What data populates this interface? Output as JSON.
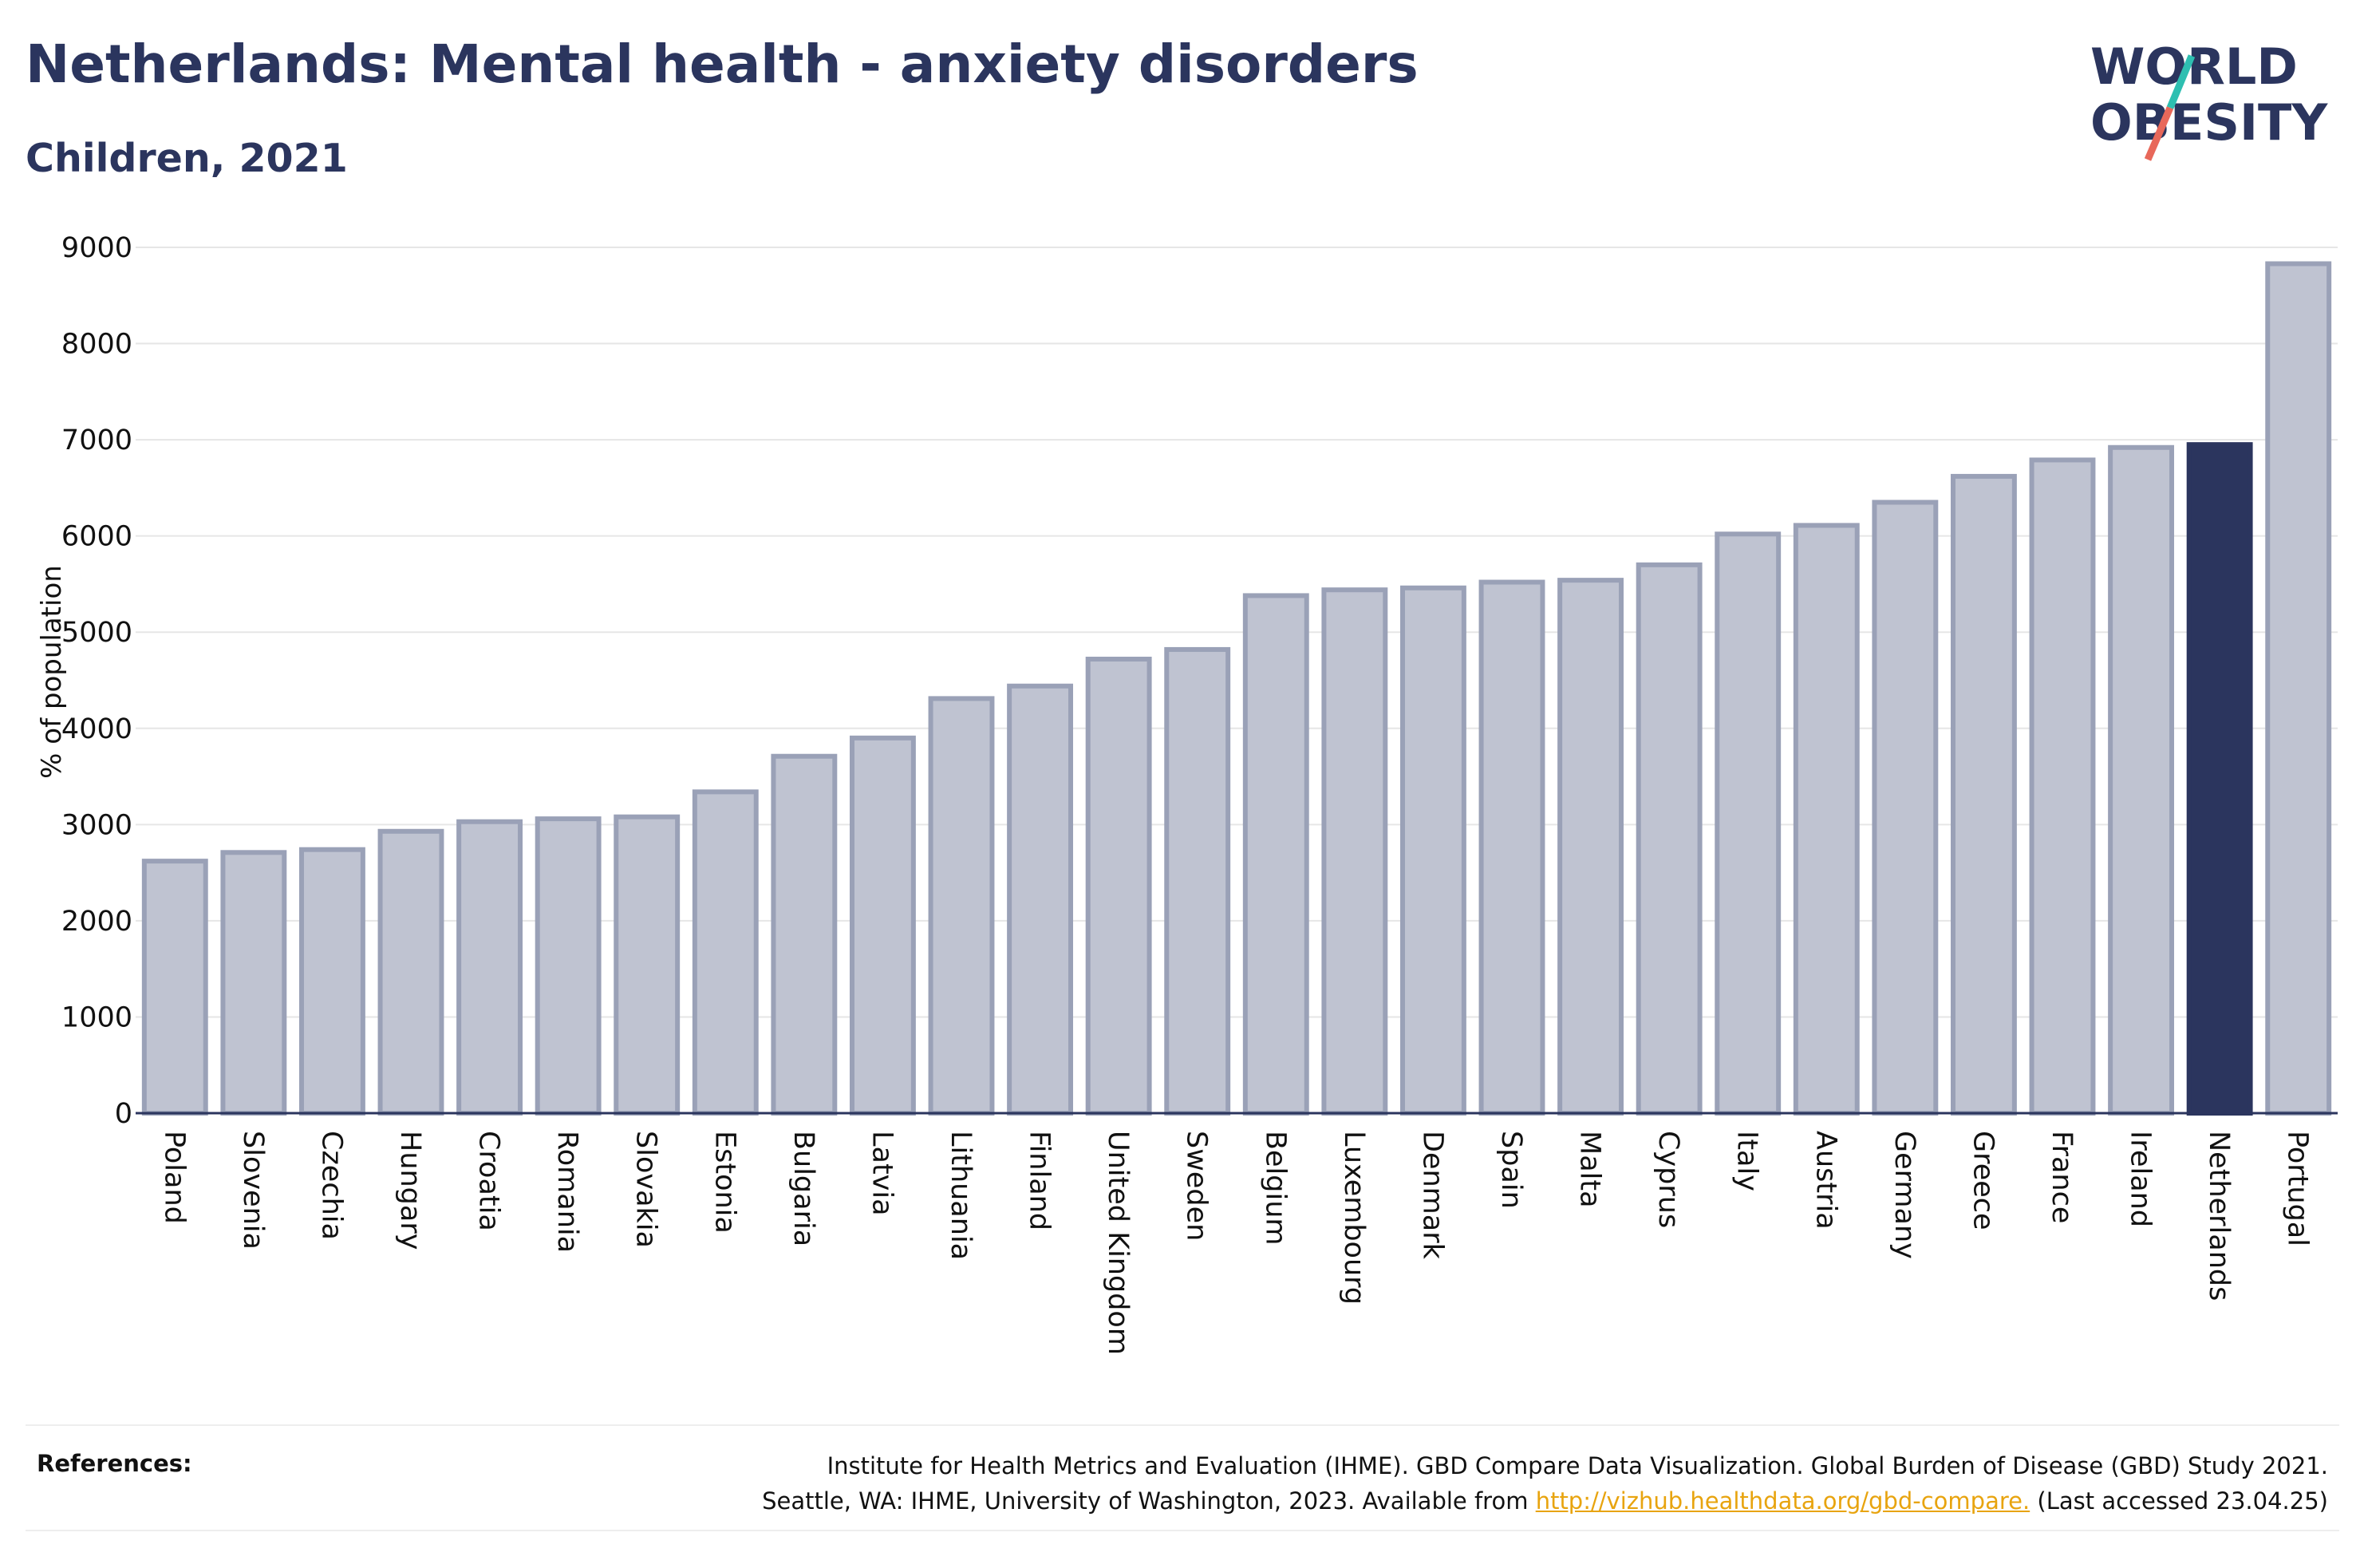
{
  "header": {
    "title": "Netherlands: Mental health - anxiety disorders",
    "subtitle": "Children, 2021"
  },
  "logo": {
    "line1": "WORLD",
    "line2": "OBESITY"
  },
  "colors": {
    "highlight": "#2b355e",
    "bar_fill": "#bfc3d1",
    "bar_stroke": "#9aa1b7",
    "grid": "#e6e6e6",
    "logo_teal": "#2ebfb1",
    "logo_red": "#e8685a"
  },
  "chart_data": {
    "type": "bar",
    "ylabel": "% of population",
    "xlabel": "",
    "ylim": [
      0,
      9000
    ],
    "yticks": [
      0,
      1000,
      2000,
      3000,
      4000,
      5000,
      6000,
      7000,
      8000,
      9000
    ],
    "grid": true,
    "highlight": "Netherlands",
    "categories": [
      "Poland",
      "Slovenia",
      "Czechia",
      "Hungary",
      "Croatia",
      "Romania",
      "Slovakia",
      "Estonia",
      "Bulgaria",
      "Latvia",
      "Lithuania",
      "Finland",
      "United Kingdom",
      "Sweden",
      "Belgium",
      "Luxembourg",
      "Denmark",
      "Spain",
      "Malta",
      "Cyprus",
      "Italy",
      "Austria",
      "Germany",
      "Greece",
      "France",
      "Ireland",
      "Netherlands",
      "Portugal"
    ],
    "values": [
      2620,
      2710,
      2740,
      2930,
      3030,
      3060,
      3080,
      3340,
      3710,
      3900,
      4310,
      4440,
      4720,
      4820,
      5380,
      5440,
      5460,
      5520,
      5540,
      5700,
      6020,
      6110,
      6350,
      6620,
      6790,
      6920,
      6950,
      8830
    ]
  },
  "references": {
    "label": "References:",
    "line1": "Institute for Health Metrics and Evaluation (IHME). GBD Compare Data Visualization. Global Burden of Disease (GBD) Study 2021.",
    "line2_prefix": "Seattle, WA: IHME, University of Washington, 2023. Available from ",
    "link": "http://vizhub.healthdata.org/gbd-compare.",
    "line2_suffix": " (Last accessed 23.04.25)"
  }
}
